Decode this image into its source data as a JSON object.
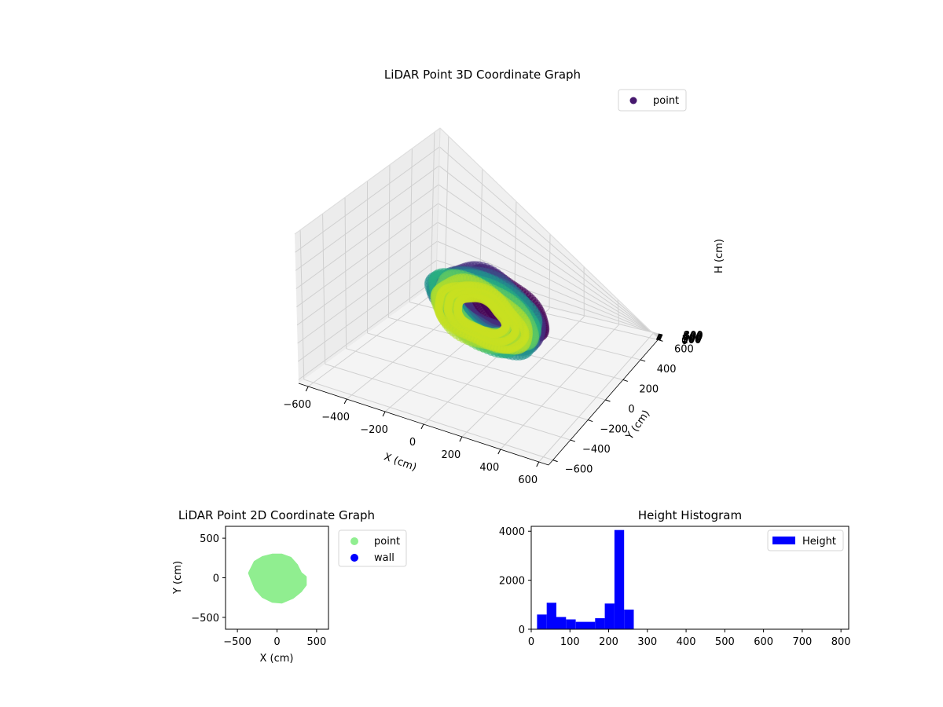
{
  "chart_data": [
    {
      "type": "scatter",
      "title": "LiDAR Point 3D Coordinate Graph",
      "xlabel": "X (cm)",
      "ylabel": "Y (cm)",
      "zlabel": "H (cm)",
      "xlim": [
        -650,
        650
      ],
      "ylim": [
        -650,
        650
      ],
      "zlim": [
        0,
        820
      ],
      "z_axis_inverted": true,
      "x_ticks": [
        -600,
        -400,
        -200,
        0,
        200,
        400,
        600
      ],
      "y_ticks": [
        -600,
        -400,
        -200,
        0,
        200,
        400,
        600
      ],
      "z_ticks": [
        0,
        100,
        200,
        300,
        400,
        500,
        600,
        700,
        800
      ],
      "grid": true,
      "colormap": "viridis",
      "legend": {
        "position": "top-right",
        "entries": [
          {
            "label": "point",
            "color": "#46186e"
          }
        ]
      },
      "layers": [
        {
          "h": 110,
          "rx": 200,
          "ry": 190,
          "cx": 60,
          "cy": 60,
          "color": "#440154"
        },
        {
          "h": 150,
          "rx": 240,
          "ry": 230,
          "cx": 20,
          "cy": 20,
          "color": "#46307e"
        },
        {
          "h": 180,
          "rx": 240,
          "ry": 240,
          "cx": 0,
          "cy": 0,
          "color": "#3b528b"
        },
        {
          "h": 200,
          "rx": 250,
          "ry": 240,
          "cx": 0,
          "cy": 0,
          "color": "#2c728e"
        },
        {
          "h": 220,
          "rx": 260,
          "ry": 250,
          "cx": 0,
          "cy": 0,
          "color": "#21918c"
        },
        {
          "h": 235,
          "rx": 250,
          "ry": 240,
          "cx": -10,
          "cy": -10,
          "color": "#28ae80"
        },
        {
          "h": 248,
          "rx": 240,
          "ry": 230,
          "cx": -10,
          "cy": -10,
          "color": "#5ec962"
        },
        {
          "h": 265,
          "rx": 230,
          "ry": 220,
          "cx": -20,
          "cy": -20,
          "color": "#addc30"
        },
        {
          "h": 280,
          "rx": 210,
          "ry": 200,
          "cx": -20,
          "cy": -20,
          "color": "#c8e020"
        }
      ]
    },
    {
      "type": "scatter",
      "title": "LiDAR Point 2D Coordinate Graph",
      "xlabel": "X (cm)",
      "ylabel": "Y (cm)",
      "xlim": [
        -650,
        650
      ],
      "ylim": [
        -650,
        650
      ],
      "x_ticks": [
        -500,
        0,
        500
      ],
      "y_ticks": [
        -500,
        0,
        500
      ],
      "legend": {
        "position": "outside-right",
        "entries": [
          {
            "label": "point",
            "color": "#90ee90"
          },
          {
            "label": "wall",
            "color": "#0000ff"
          }
        ]
      },
      "series": [
        {
          "name": "point",
          "color": "#90ee90",
          "outline": [
            [
              -330,
              100
            ],
            [
              -280,
              200
            ],
            [
              -180,
              260
            ],
            [
              -60,
              290
            ],
            [
              60,
              290
            ],
            [
              170,
              250
            ],
            [
              250,
              160
            ],
            [
              300,
              60
            ],
            [
              360,
              10
            ],
            [
              360,
              -90
            ],
            [
              300,
              -170
            ],
            [
              200,
              -250
            ],
            [
              60,
              -310
            ],
            [
              -60,
              -300
            ],
            [
              -180,
              -240
            ],
            [
              -270,
              -140
            ],
            [
              -320,
              -20
            ],
            [
              -350,
              60
            ]
          ]
        },
        {
          "name": "wall",
          "color": "#0000ff",
          "points": []
        }
      ]
    },
    {
      "type": "bar",
      "title": "Height Histogram",
      "xlim": [
        0,
        820
      ],
      "ylim": [
        0,
        4200
      ],
      "x_ticks": [
        0,
        100,
        200,
        300,
        400,
        500,
        600,
        700,
        800
      ],
      "y_ticks": [
        0,
        2000,
        4000
      ],
      "legend": {
        "position": "top-right",
        "entries": [
          {
            "label": "Height",
            "color": "#0000ff"
          }
        ]
      },
      "series": [
        {
          "name": "Height",
          "color": "#0000ff",
          "bin_edges": [
            15,
            40,
            65,
            90,
            115,
            140,
            165,
            190,
            215,
            240,
            265
          ],
          "counts": [
            600,
            1080,
            500,
            400,
            300,
            300,
            450,
            1050,
            4050,
            800
          ]
        }
      ]
    }
  ]
}
